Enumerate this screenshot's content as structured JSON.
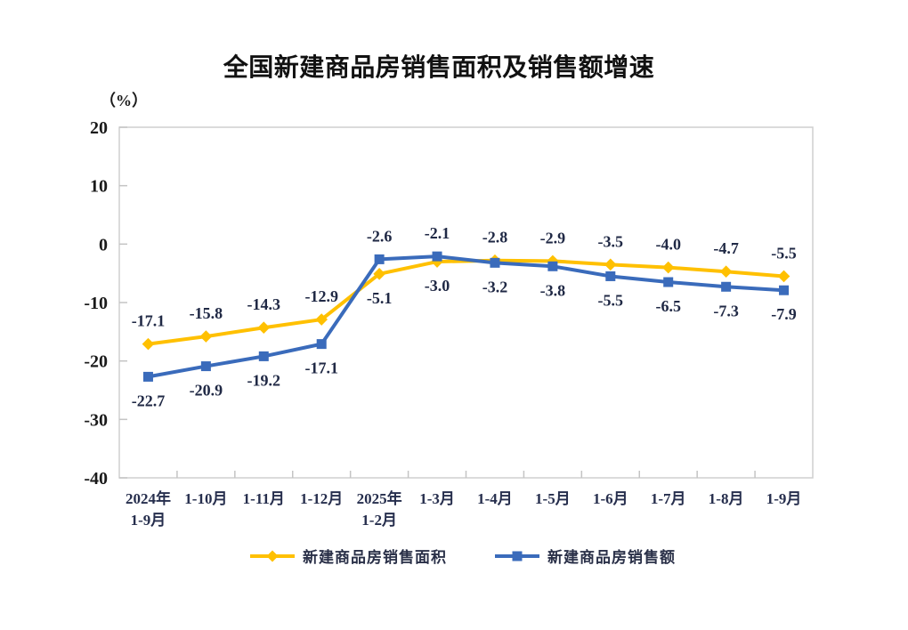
{
  "page": {
    "background": "#ffffff"
  },
  "chart_data": {
    "type": "line",
    "title": "全国新建商品房销售面积及销售额增速",
    "unit_label": "（%）",
    "categories": [
      "2024年 1-9月",
      "1-10月",
      "1-11月",
      "1-12月",
      "2025年 1-2月",
      "1-3月",
      "1-4月",
      "1-5月",
      "1-6月",
      "1-7月",
      "1-8月",
      "1-9月"
    ],
    "series": [
      {
        "name": "新建商品房销售面积",
        "color": "#FFC000",
        "marker": "diamond",
        "values": [
          -17.1,
          -15.8,
          -14.3,
          -12.9,
          -5.1,
          -3.0,
          -2.8,
          -2.9,
          -3.5,
          -4.0,
          -4.7,
          -5.5
        ],
        "labels": [
          "-17.1",
          "-15.8",
          "-14.3",
          "-12.9",
          "-5.1",
          "-3.0",
          "-2.8",
          "-2.9",
          "-3.5",
          "-4.0",
          "-4.7",
          "-5.5"
        ],
        "label_side": [
          "above",
          "above",
          "above",
          "above",
          "below",
          "below",
          "above",
          "above",
          "above",
          "above",
          "above",
          "above"
        ]
      },
      {
        "name": "新建商品房销售额",
        "color": "#3A6BBB",
        "marker": "square",
        "values": [
          -22.7,
          -20.9,
          -19.2,
          -17.1,
          -2.6,
          -2.1,
          -3.2,
          -3.8,
          -5.5,
          -6.5,
          -7.3,
          -7.9
        ],
        "labels": [
          "-22.7",
          "-20.9",
          "-19.2",
          "-17.1",
          "-2.6",
          "-2.1",
          "-3.2",
          "-3.8",
          "-5.5",
          "-6.5",
          "-7.3",
          "-7.9"
        ],
        "label_side": [
          "below",
          "below",
          "below",
          "below",
          "above",
          "above",
          "below",
          "below",
          "below",
          "below",
          "below",
          "below"
        ]
      }
    ],
    "ylim": [
      -40,
      20
    ],
    "yticks": [
      20,
      10,
      0,
      -10,
      -20,
      -30,
      -40
    ],
    "grid": false,
    "legend_position": "bottom",
    "colors": {
      "frame": "#cfcfcf",
      "tick": "#c4c4c4",
      "title_text": "#111111",
      "axis_text": "#1a1a1a",
      "label_text": "#202945"
    }
  }
}
